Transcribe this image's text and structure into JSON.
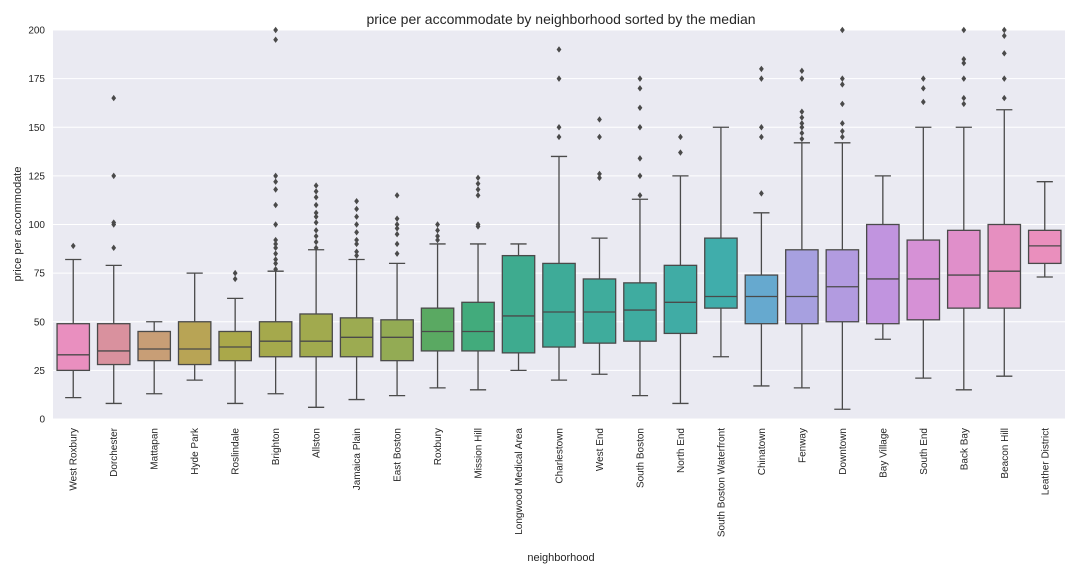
{
  "chart_data": {
    "type": "box",
    "title": "price per accommodate by neighborhood sorted by the median",
    "xlabel": "neighborhood",
    "ylabel": "price per accommodate",
    "ylim": [
      0,
      200
    ],
    "yticks": [
      0,
      25,
      50,
      75,
      100,
      125,
      150,
      175,
      200
    ],
    "grid": true,
    "background": "#eaeaf2",
    "line_color": "#4a4a4a",
    "categories": [
      "West Roxbury",
      "Dorchester",
      "Mattapan",
      "Hyde Park",
      "Roslindale",
      "Brighton",
      "Allston",
      "Jamaica Plain",
      "East Boston",
      "Roxbury",
      "Mission Hill",
      "Longwood Medical Area",
      "Charlestown",
      "West End",
      "South Boston",
      "North End",
      "South Boston Waterfront",
      "Chinatown",
      "Fenway",
      "Downtown",
      "Bay Village",
      "South End",
      "Back Bay",
      "Beacon Hill",
      "Leather District"
    ],
    "boxes": [
      {
        "whisker_low": 11,
        "q1": 25,
        "median": 33,
        "q3": 49,
        "whisker_high": 82,
        "outliers": [
          89
        ],
        "color": "#e98fbf"
      },
      {
        "whisker_low": 8,
        "q1": 28,
        "median": 35,
        "q3": 49,
        "whisker_high": 79,
        "outliers": [
          88,
          100,
          101,
          125,
          165
        ],
        "color": "#d9919e"
      },
      {
        "whisker_low": 13,
        "q1": 30,
        "median": 36,
        "q3": 45,
        "whisker_high": 50,
        "outliers": [],
        "color": "#c89e76"
      },
      {
        "whisker_low": 20,
        "q1": 28,
        "median": 36,
        "q3": 50,
        "whisker_high": 75,
        "outliers": [],
        "color": "#b8a455"
      },
      {
        "whisker_low": 8,
        "q1": 30,
        "median": 37,
        "q3": 45,
        "whisker_high": 62,
        "outliers": [
          72,
          75
        ],
        "color": "#aaa84a"
      },
      {
        "whisker_low": 13,
        "q1": 32,
        "median": 40,
        "q3": 50,
        "whisker_high": 76,
        "outliers": [
          77,
          80,
          82,
          85,
          88,
          90,
          92,
          100,
          110,
          118,
          122,
          125,
          195,
          200
        ],
        "color": "#a5a94c"
      },
      {
        "whisker_low": 6,
        "q1": 32,
        "median": 40,
        "q3": 54,
        "whisker_high": 87,
        "outliers": [
          88,
          91,
          94,
          97,
          101,
          104,
          106,
          110,
          114,
          117,
          120
        ],
        "color": "#a1aa4e"
      },
      {
        "whisker_low": 10,
        "q1": 32,
        "median": 42,
        "q3": 52,
        "whisker_high": 82,
        "outliers": [
          84,
          86,
          90,
          92,
          96,
          100,
          104,
          108,
          112
        ],
        "color": "#9cab51"
      },
      {
        "whisker_low": 12,
        "q1": 30,
        "median": 42,
        "q3": 51,
        "whisker_high": 80,
        "outliers": [
          85,
          90,
          95,
          98,
          100,
          103,
          115
        ],
        "color": "#93ab54"
      },
      {
        "whisker_low": 16,
        "q1": 35,
        "median": 45,
        "q3": 57,
        "whisker_high": 90,
        "outliers": [
          92,
          94,
          97,
          100
        ],
        "color": "#5aa962"
      },
      {
        "whisker_low": 15,
        "q1": 35,
        "median": 45,
        "q3": 60,
        "whisker_high": 90,
        "outliers": [
          99,
          100,
          115,
          118,
          121,
          124
        ],
        "color": "#42ab7c"
      },
      {
        "whisker_low": 25,
        "q1": 34,
        "median": 53,
        "q3": 84,
        "whisker_high": 90,
        "outliers": [],
        "color": "#3eab8f"
      },
      {
        "whisker_low": 20,
        "q1": 37,
        "median": 55,
        "q3": 80,
        "whisker_high": 135,
        "outliers": [
          145,
          150,
          175,
          190
        ],
        "color": "#3eab98"
      },
      {
        "whisker_low": 23,
        "q1": 39,
        "median": 55,
        "q3": 72,
        "whisker_high": 93,
        "outliers": [
          124,
          126,
          145,
          154
        ],
        "color": "#3fac9c"
      },
      {
        "whisker_low": 12,
        "q1": 40,
        "median": 56,
        "q3": 70,
        "whisker_high": 113,
        "outliers": [
          115,
          125,
          134,
          150,
          160,
          170,
          175
        ],
        "color": "#3faca0"
      },
      {
        "whisker_low": 8,
        "q1": 44,
        "median": 60,
        "q3": 79,
        "whisker_high": 125,
        "outliers": [
          137,
          145
        ],
        "color": "#40aca5"
      },
      {
        "whisker_low": 32,
        "q1": 57,
        "median": 63,
        "q3": 93,
        "whisker_high": 150,
        "outliers": [],
        "color": "#40adab"
      },
      {
        "whisker_low": 17,
        "q1": 49,
        "median": 63,
        "q3": 74,
        "whisker_high": 106,
        "outliers": [
          116,
          145,
          150,
          175,
          180
        ],
        "color": "#66a9cf"
      },
      {
        "whisker_low": 16,
        "q1": 49,
        "median": 63,
        "q3": 87,
        "whisker_high": 142,
        "outliers": [
          144,
          147,
          150,
          152,
          155,
          158,
          175,
          179
        ],
        "color": "#a7a0e0"
      },
      {
        "whisker_low": 5,
        "q1": 50,
        "median": 68,
        "q3": 87,
        "whisker_high": 142,
        "outliers": [
          145,
          148,
          152,
          162,
          172,
          175,
          200
        ],
        "color": "#b29be0"
      },
      {
        "whisker_low": 41,
        "q1": 49,
        "median": 72,
        "q3": 100,
        "whisker_high": 125,
        "outliers": [],
        "color": "#c194df"
      },
      {
        "whisker_low": 21,
        "q1": 51,
        "median": 72,
        "q3": 92,
        "whisker_high": 150,
        "outliers": [
          163,
          170,
          175
        ],
        "color": "#d691d6"
      },
      {
        "whisker_low": 15,
        "q1": 57,
        "median": 74,
        "q3": 97,
        "whisker_high": 150,
        "outliers": [
          162,
          165,
          175,
          183,
          185,
          200
        ],
        "color": "#e08fca"
      },
      {
        "whisker_low": 22,
        "q1": 57,
        "median": 76,
        "q3": 100,
        "whisker_high": 159,
        "outliers": [
          165,
          175,
          188,
          197,
          200
        ],
        "color": "#e68fc0"
      },
      {
        "whisker_low": 73,
        "q1": 80,
        "median": 89,
        "q3": 97,
        "whisker_high": 122,
        "outliers": [],
        "color": "#ea8fbd"
      }
    ]
  }
}
